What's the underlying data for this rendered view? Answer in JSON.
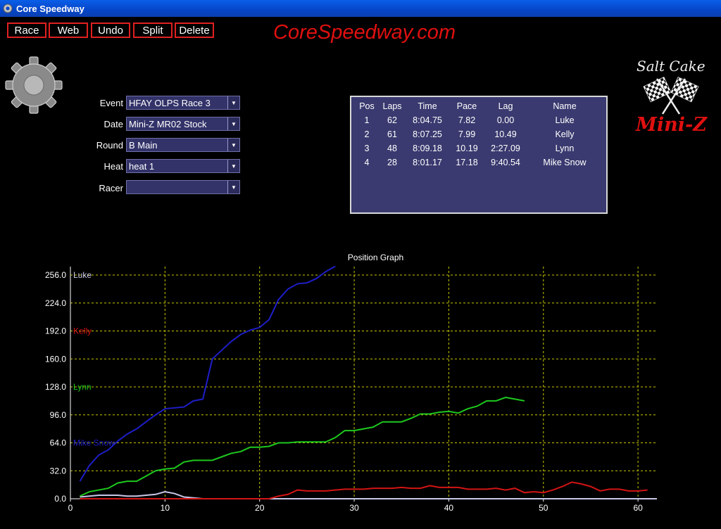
{
  "window": {
    "title": "Core Speedway"
  },
  "toolbar": {
    "race": "Race",
    "web": "Web",
    "undo": "Undo",
    "split": "Split",
    "delete": "Delete"
  },
  "brand": {
    "text": "CoreSpeedway.com",
    "color": "#e01010"
  },
  "logo": {
    "line1": "Salt Cake",
    "line2": "Mini-Z"
  },
  "form": {
    "event": {
      "label": "Event",
      "value": "HFAY OLPS Race 3"
    },
    "date": {
      "label": "Date",
      "value": "Mini-Z MR02 Stock"
    },
    "round": {
      "label": "Round",
      "value": "B Main"
    },
    "heat": {
      "label": "Heat",
      "value": "heat 1"
    },
    "racer": {
      "label": "Racer",
      "value": ""
    }
  },
  "results": {
    "headers": [
      "Pos",
      "Laps",
      "Time",
      "Pace",
      "Lag",
      "Name"
    ],
    "rows": [
      [
        "1",
        "62",
        "8:04.75",
        "7.82",
        "0.00",
        "Luke"
      ],
      [
        "2",
        "61",
        "8:07.25",
        "7.99",
        "10.49",
        "Kelly"
      ],
      [
        "3",
        "48",
        "8:09.18",
        "10.19",
        "2:27.09",
        "Lynn"
      ],
      [
        "4",
        "28",
        "8:01.17",
        "17.18",
        "9:40.54",
        "Mike Snow"
      ]
    ]
  },
  "chart_data": {
    "type": "line",
    "title": "Position Graph",
    "xlim": [
      0,
      62
    ],
    "ylim": [
      0,
      256
    ],
    "xticks": [
      "0",
      "10",
      "20",
      "30",
      "40",
      "50",
      "60"
    ],
    "yticks": [
      "0.0",
      "32.0",
      "64.0",
      "96.0",
      "128.0",
      "160.0",
      "192.0",
      "224.0",
      "256.0"
    ],
    "grid": true,
    "series": [
      {
        "name": "Luke",
        "color": "#c8c8e8",
        "x": [
          1,
          2,
          3,
          4,
          5,
          6,
          7,
          8,
          9,
          10,
          11,
          12,
          13,
          14,
          15,
          16,
          17,
          18,
          19,
          20,
          21,
          22,
          23,
          24,
          25,
          26,
          27,
          28,
          29,
          30,
          31,
          32,
          33,
          34,
          35,
          36,
          37,
          38,
          39,
          40,
          41,
          42,
          43,
          44,
          45,
          46,
          47,
          48,
          49,
          50,
          51,
          52,
          53,
          54,
          55,
          56,
          57,
          58,
          59,
          60,
          61,
          62
        ],
        "y": [
          2,
          3,
          4,
          4,
          4,
          3,
          3,
          4,
          5,
          8,
          6,
          2,
          1,
          0,
          0,
          0,
          0,
          0,
          0,
          0,
          0,
          0,
          0,
          0,
          0,
          0,
          0,
          0,
          0,
          0,
          0,
          0,
          0,
          0,
          0,
          0,
          0,
          0,
          0,
          0,
          0,
          0,
          0,
          0,
          0,
          0,
          0,
          0,
          0,
          0,
          0,
          0,
          0,
          0,
          0,
          0,
          0,
          0,
          0,
          0,
          0,
          0
        ]
      },
      {
        "name": "Kelly",
        "color": "#d21414",
        "x": [
          1,
          2,
          3,
          4,
          5,
          6,
          7,
          8,
          9,
          10,
          11,
          12,
          13,
          14,
          15,
          16,
          17,
          18,
          19,
          20,
          21,
          22,
          23,
          24,
          25,
          26,
          27,
          28,
          29,
          30,
          31,
          32,
          33,
          34,
          35,
          36,
          37,
          38,
          39,
          40,
          41,
          42,
          43,
          44,
          45,
          46,
          47,
          48,
          49,
          50,
          51,
          52,
          53,
          54,
          55,
          56,
          57,
          58,
          59,
          60,
          61
        ],
        "y": [
          0,
          0,
          0,
          0,
          0,
          0,
          0,
          0,
          0,
          0,
          0,
          0,
          0,
          0,
          0,
          0,
          0,
          0,
          0,
          0,
          0,
          3,
          5,
          10,
          9,
          9,
          9,
          10,
          11,
          11,
          11,
          12,
          12,
          12,
          13,
          12,
          12,
          15,
          13,
          13,
          13,
          11,
          11,
          11,
          12,
          10,
          12,
          7,
          8,
          7,
          10,
          14,
          19,
          17,
          14,
          9,
          11,
          11,
          9,
          9,
          10
        ]
      },
      {
        "name": "Lynn",
        "color": "#1ec81e",
        "x": [
          1,
          2,
          3,
          4,
          5,
          6,
          7,
          8,
          9,
          10,
          11,
          12,
          13,
          14,
          15,
          16,
          17,
          18,
          19,
          20,
          21,
          22,
          23,
          24,
          25,
          26,
          27,
          28,
          29,
          30,
          31,
          32,
          33,
          34,
          35,
          36,
          37,
          38,
          39,
          40,
          41,
          42,
          43,
          44,
          45,
          46,
          47,
          48
        ],
        "y": [
          3,
          8,
          10,
          12,
          18,
          20,
          20,
          26,
          32,
          34,
          35,
          42,
          44,
          44,
          44,
          48,
          52,
          54,
          59,
          59,
          60,
          64,
          64,
          65,
          65,
          65,
          65,
          70,
          78,
          78,
          80,
          82,
          88,
          88,
          88,
          92,
          97,
          97,
          99,
          100,
          98,
          103,
          106,
          112,
          112,
          116,
          114,
          112
        ]
      },
      {
        "name": "Mike Snow",
        "color": "#1e1ec8",
        "x": [
          1,
          2,
          3,
          4,
          5,
          6,
          7,
          8,
          9,
          10,
          11,
          12,
          13,
          14,
          15,
          16,
          17,
          18,
          19,
          20,
          21,
          22,
          23,
          24,
          25,
          26,
          27,
          28
        ],
        "y": [
          20,
          38,
          50,
          56,
          66,
          74,
          80,
          88,
          96,
          103,
          104,
          105,
          112,
          114,
          160,
          170,
          180,
          188,
          193,
          196,
          205,
          228,
          240,
          246,
          247,
          252,
          260,
          266
        ]
      }
    ]
  }
}
